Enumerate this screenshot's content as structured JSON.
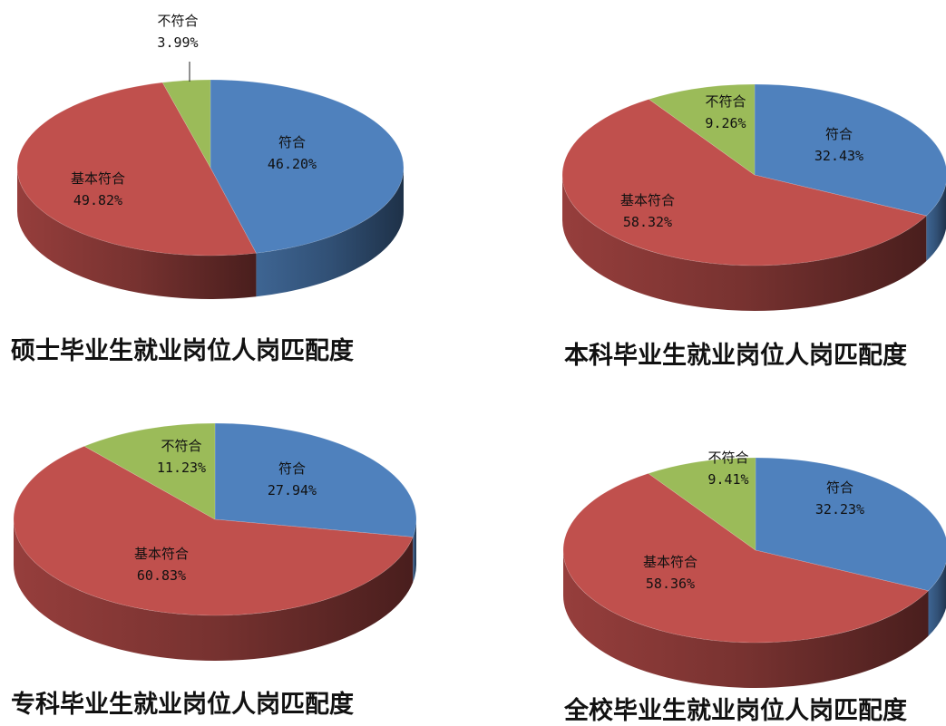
{
  "chart_data": [
    {
      "type": "pie",
      "title": "硕士毕业生就业岗位人岗匹配度",
      "slices": [
        {
          "label": "符合",
          "value": 46.2,
          "value_text": "46.20%",
          "color": "#4f81bd"
        },
        {
          "label": "基本符合",
          "value": 49.82,
          "value_text": "49.82%",
          "color": "#c0504d"
        },
        {
          "label": "不符合",
          "value": 3.99,
          "value_text": "3.99%",
          "color": "#9bbb59"
        }
      ]
    },
    {
      "type": "pie",
      "title": "本科毕业生就业岗位人岗匹配度",
      "slices": [
        {
          "label": "符合",
          "value": 32.43,
          "value_text": "32.43%",
          "color": "#4f81bd"
        },
        {
          "label": "基本符合",
          "value": 58.32,
          "value_text": "58.32%",
          "color": "#c0504d"
        },
        {
          "label": "不符合",
          "value": 9.26,
          "value_text": "9.26%",
          "color": "#9bbb59"
        }
      ]
    },
    {
      "type": "pie",
      "title": "专科毕业生就业岗位人岗匹配度",
      "slices": [
        {
          "label": "符合",
          "value": 27.94,
          "value_text": "27.94%",
          "color": "#4f81bd"
        },
        {
          "label": "基本符合",
          "value": 60.83,
          "value_text": "60.83%",
          "color": "#c0504d"
        },
        {
          "label": "不符合",
          "value": 11.23,
          "value_text": "11.23%",
          "color": "#9bbb59"
        }
      ]
    },
    {
      "type": "pie",
      "title": "全校毕业生就业岗位人岗匹配度",
      "slices": [
        {
          "label": "符合",
          "value": 32.23,
          "value_text": "32.23%",
          "color": "#4f81bd"
        },
        {
          "label": "基本符合",
          "value": 58.36,
          "value_text": "58.36%",
          "color": "#c0504d"
        },
        {
          "label": "不符合",
          "value": 9.41,
          "value_text": "9.41%",
          "color": "#9bbb59"
        }
      ]
    }
  ]
}
